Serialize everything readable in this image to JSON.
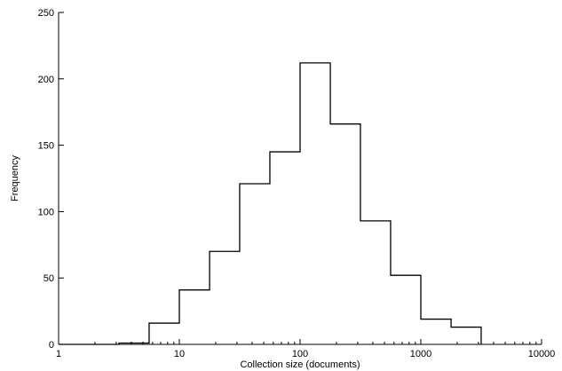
{
  "chart_data": {
    "type": "histogram",
    "xlabel": "Collection size (documents)",
    "ylabel": "Frequency",
    "xscale": "log",
    "xlim": [
      1,
      10000
    ],
    "ylim": [
      0,
      250
    ],
    "grid": false,
    "legend": null,
    "x_tick_values": [
      1,
      10,
      100,
      1000,
      10000
    ],
    "x_tick_labels": [
      "1",
      "10",
      "100",
      "1000",
      "10000"
    ],
    "y_tick_values": [
      0,
      50,
      100,
      150,
      200,
      250
    ],
    "y_tick_labels": [
      "0",
      "50",
      "100",
      "150",
      "200",
      "250"
    ],
    "bin_edges": [
      1,
      1.78,
      3.16,
      5.62,
      10,
      17.8,
      31.6,
      56.2,
      100,
      178,
      316,
      562,
      1000,
      1780,
      3160
    ],
    "counts": [
      0,
      0,
      1,
      16,
      41,
      70,
      121,
      145,
      212,
      166,
      93,
      52,
      19,
      13
    ]
  }
}
